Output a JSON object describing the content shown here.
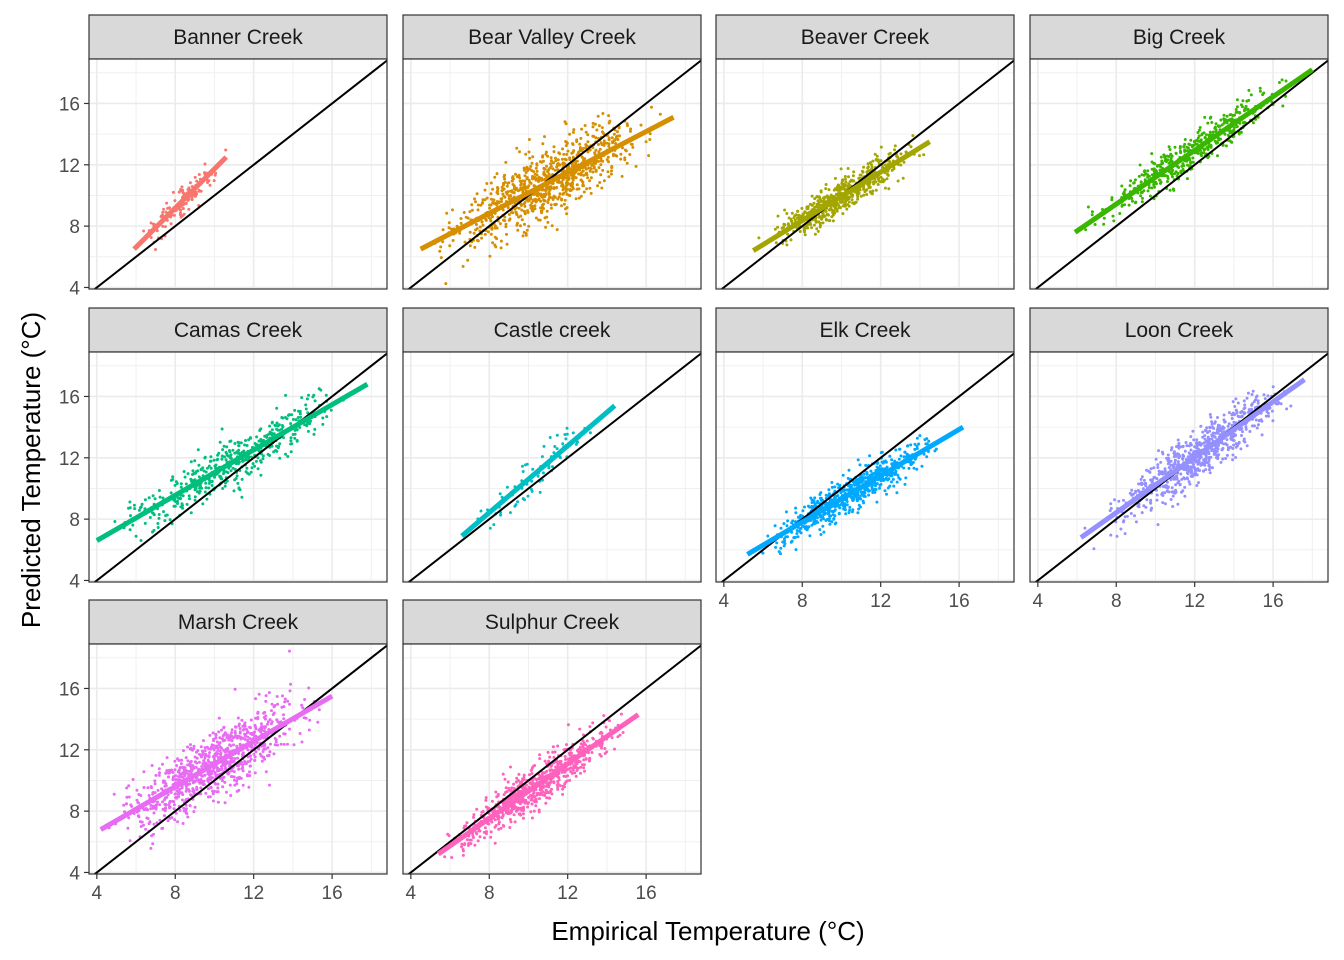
{
  "chart_data": {
    "type": "scatter",
    "facet_layout": "4 columns, 3 rows, fixed scales",
    "xlabel": "Empirical Temperature (°C)",
    "ylabel": "Predicted Temperature (°C)",
    "xlim": [
      3.6,
      18.8
    ],
    "ylim": [
      3.9,
      18.9
    ],
    "x_ticks": [
      "4",
      "8",
      "12",
      "16"
    ],
    "y_ticks": [
      "4",
      "8",
      "12",
      "16"
    ],
    "reference_line": "y = x",
    "grid": true,
    "legend": "none",
    "panels": [
      {
        "name": "Banner Creek",
        "color": "#F8766D",
        "n": 150,
        "x_range": [
          5.8,
          10.8
        ],
        "trend": {
          "x": [
            5.9,
            10.6
          ],
          "y": [
            6.5,
            12.5
          ]
        },
        "spread": 0.5
      },
      {
        "name": "Bear Valley Creek",
        "color": "#D58F00",
        "n": 900,
        "x_range": [
          4.4,
          17.3
        ],
        "trend": {
          "x": [
            4.5,
            17.4
          ],
          "y": [
            6.5,
            15.1
          ]
        },
        "spread": 1.15
      },
      {
        "name": "Beaver Creek",
        "color": "#A3A500",
        "n": 600,
        "x_range": [
          5.5,
          14.5
        ],
        "trend": {
          "x": [
            5.5,
            14.5
          ],
          "y": [
            6.4,
            13.5
          ]
        },
        "spread": 0.55
      },
      {
        "name": "Big Creek",
        "color": "#39B600",
        "n": 500,
        "x_range": [
          5.9,
          17.8
        ],
        "trend": {
          "x": [
            5.9,
            18.0
          ],
          "y": [
            7.6,
            18.2
          ]
        },
        "spread": 0.6
      },
      {
        "name": "Camas Creek",
        "color": "#00BF7D",
        "n": 500,
        "x_range": [
          4.0,
          17.8
        ],
        "trend": {
          "x": [
            4.0,
            17.8
          ],
          "y": [
            6.6,
            16.8
          ]
        },
        "spread": 0.75
      },
      {
        "name": "Castle creek",
        "color": "#00BFC4",
        "n": 80,
        "x_range": [
          6.6,
          14.2
        ],
        "trend": {
          "x": [
            6.6,
            14.4
          ],
          "y": [
            6.9,
            15.4
          ]
        },
        "spread": 0.65
      },
      {
        "name": "Elk Creek",
        "color": "#00A9FF",
        "n": 700,
        "x_range": [
          5.2,
          15.8
        ],
        "trend": {
          "x": [
            5.2,
            16.2
          ],
          "y": [
            5.7,
            14.0
          ]
        },
        "spread": 0.6
      },
      {
        "name": "Loon Creek",
        "color": "#9590FF",
        "n": 700,
        "x_range": [
          6.2,
          17.6
        ],
        "trend": {
          "x": [
            6.2,
            17.6
          ],
          "y": [
            6.8,
            17.1
          ]
        },
        "spread": 0.8
      },
      {
        "name": "Marsh Creek",
        "color": "#E76BF3",
        "n": 900,
        "x_range": [
          4.1,
          16.0
        ],
        "trend": {
          "x": [
            4.2,
            16.0
          ],
          "y": [
            6.8,
            15.5
          ]
        },
        "spread": 1.1
      },
      {
        "name": "Sulphur Creek",
        "color": "#FF62BC",
        "n": 700,
        "x_range": [
          5.2,
          15.6
        ],
        "trend": {
          "x": [
            5.4,
            15.6
          ],
          "y": [
            5.2,
            14.3
          ]
        },
        "spread": 0.7
      }
    ]
  }
}
